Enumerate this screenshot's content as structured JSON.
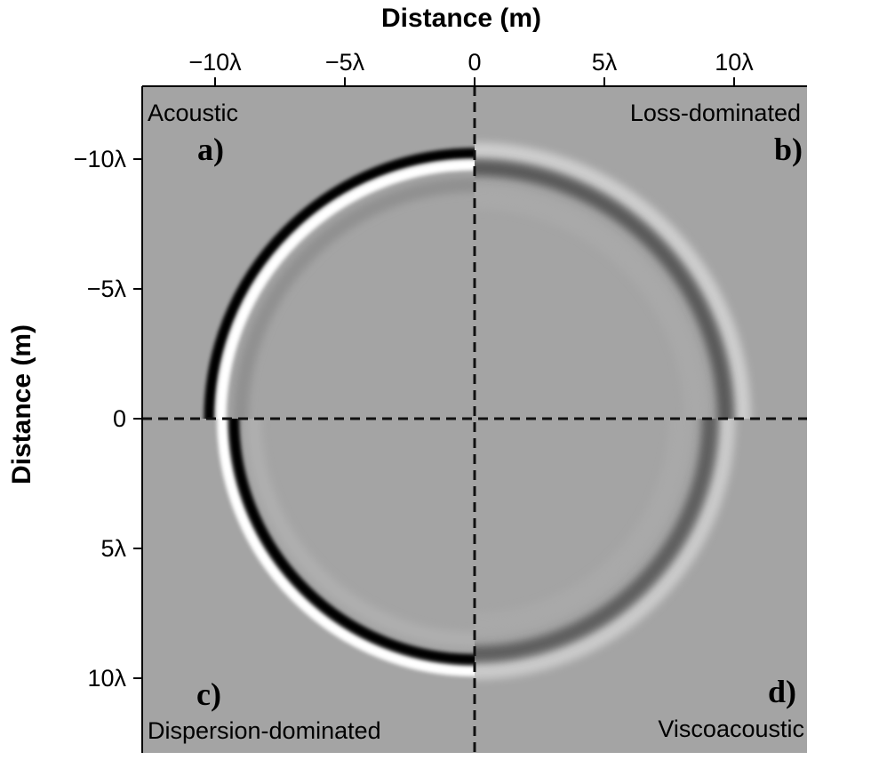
{
  "chart_data": {
    "type": "heatmap",
    "xlabel": "Distance (m)",
    "ylabel": "Distance (m)",
    "x_ticks": [
      "−10λ",
      "−5λ",
      "0",
      "5λ",
      "10λ"
    ],
    "x_tick_values": [
      -10,
      -5,
      0,
      5,
      10
    ],
    "y_ticks": [
      "−10λ",
      "−5λ",
      "0",
      "5λ",
      "10λ"
    ],
    "y_tick_values": [
      -10,
      -5,
      0,
      5,
      10
    ],
    "xlim": [
      -12.9,
      12.9
    ],
    "ylim": [
      -12.9,
      12.9
    ],
    "grid": false,
    "divider_lines": {
      "x": 0,
      "y": 0,
      "style": "dashed"
    },
    "panels": [
      {
        "letter": "a)",
        "name": "Acoustic",
        "quadrant": "top-left",
        "wavefront_radius": 10.0,
        "amplitude": 1.0,
        "pulse_width": 1.0,
        "ring_order": "black-outer"
      },
      {
        "letter": "b)",
        "name": "Loss-dominated",
        "quadrant": "top-right",
        "wavefront_radius": 10.0,
        "amplitude": 0.45,
        "pulse_width": 1.5,
        "ring_order": "white-outer"
      },
      {
        "letter": "c)",
        "name": "Dispersion-dominated",
        "quadrant": "bottom-left",
        "wavefront_radius": 9.5,
        "amplitude": 1.0,
        "pulse_width": 1.0,
        "ring_order": "white-outer"
      },
      {
        "letter": "d)",
        "name": "Viscoacoustic",
        "quadrant": "bottom-right",
        "wavefront_radius": 9.4,
        "amplitude": 0.42,
        "pulse_width": 1.5,
        "ring_order": "white-outer"
      }
    ],
    "colors": {
      "background": "#a4a4a4",
      "positive": "#ffffff",
      "negative": "#000000",
      "frame": "#000000"
    }
  }
}
